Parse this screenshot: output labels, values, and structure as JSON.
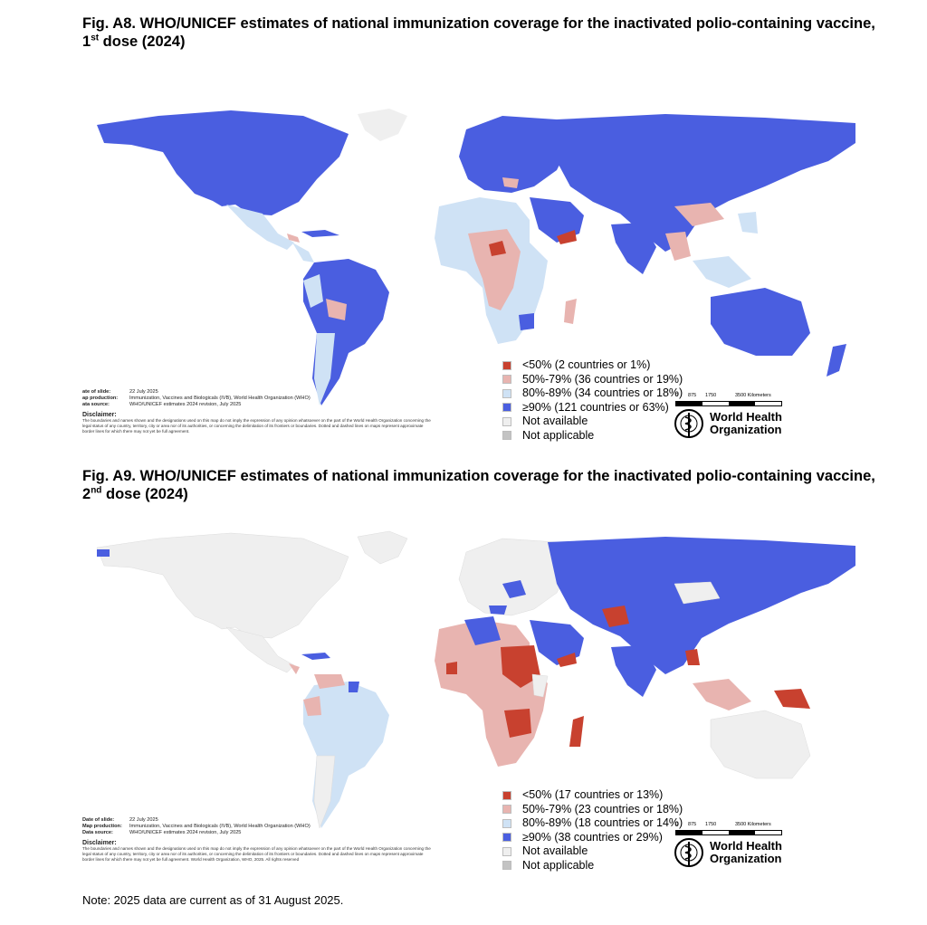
{
  "colors": {
    "lt50": "#c8412f",
    "c50_79": "#e8b4b0",
    "c80_89": "#cfe2f5",
    "ge90": "#4a5ee0",
    "not_available": "#efefef",
    "not_applicable": "#c3c3c3"
  },
  "figures": [
    {
      "title": "Fig. A8. WHO/UNICEF estimates of national immunization coverage for the inactivated polio-containing vaccine, 1",
      "title_sup": "st",
      "title_end": " dose (2024)",
      "legend": [
        {
          "key": "lt50",
          "label": "<50% (2 countries or 1%)"
        },
        {
          "key": "c50_79",
          "label": "50%-79% (36 countries or 19%)"
        },
        {
          "key": "c80_89",
          "label": "80%-89% (34 countries or 18%)"
        },
        {
          "key": "ge90",
          "label": "≥90% (121 countries or 63%)"
        },
        {
          "key": "not_available",
          "label": "Not available"
        },
        {
          "key": "not_applicable",
          "label": "Not applicable"
        }
      ],
      "meta": {
        "date_label": "ate of slide:",
        "date": "22 July 2025",
        "production_label": "ap production:",
        "production": "Immunization, Vaccines and Biologicals (IVB), World Health Organization (WHO)",
        "source_label": "ata source:",
        "source": "WHO/UNICEF estimates 2024 revision, July 2025",
        "disclaimer_heading": "Disclaimer:",
        "disclaimer": "The boundaries and names shown and the designations used on this map do not imply the expression of any opinion whatsoever on the part of the World Health Organization concerning the legal status of any country, territory, city or area nor of its authorities, or concerning the delimitation of its frontiers or boundaries. Dotted and dashed lines on maps represent approximate border lines for which there may not yet be full agreement."
      }
    },
    {
      "title": "Fig. A9. WHO/UNICEF estimates of national immunization coverage for the inactivated polio-containing vaccine, 2",
      "title_sup": "nd",
      "title_end": " dose (2024)",
      "legend": [
        {
          "key": "lt50",
          "label": "<50% (17 countries or 13%)"
        },
        {
          "key": "c50_79",
          "label": "50%-79% (23 countries or 18%)"
        },
        {
          "key": "c80_89",
          "label": "80%-89% (18 countries or 14%)"
        },
        {
          "key": "ge90",
          "label": "≥90% (38 countries or 29%)"
        },
        {
          "key": "not_available",
          "label": "Not available"
        },
        {
          "key": "not_applicable",
          "label": "Not applicable"
        }
      ],
      "meta": {
        "date_label": "Date of slide:",
        "date": "22 July 2025",
        "production_label": "Map production:",
        "production": "Immunization, Vaccines and Biologicals (IVB), World Health Organization (WHO)",
        "source_label": "Data source:",
        "source": "WHO/UNICEF estimates 2024 revision, July 2025",
        "disclaimer_heading": "Disclaimer:",
        "disclaimer": "The boundaries and names shown and the designations used on this map do not imply the expression of any opinion whatsoever on the part of the World Health Organization concerning the legal status of any country, territory, city or area nor of its authorities, or concerning the delimitation of its frontiers or boundaries. Dotted and dashed lines on maps represent approximate border lines for which there may not yet be full agreement. World Health Organization, WHO, 2025. All rights reserved"
      }
    }
  ],
  "scale": {
    "t0": "0",
    "t1": "875",
    "t2": "1750",
    "t3": "3500 Kilometers"
  },
  "who_logo": {
    "line1": "World Health",
    "line2": "Organization",
    "icon": "who-emblem-icon"
  },
  "note": "Note: 2025 data are current as of 31 August 2025."
}
